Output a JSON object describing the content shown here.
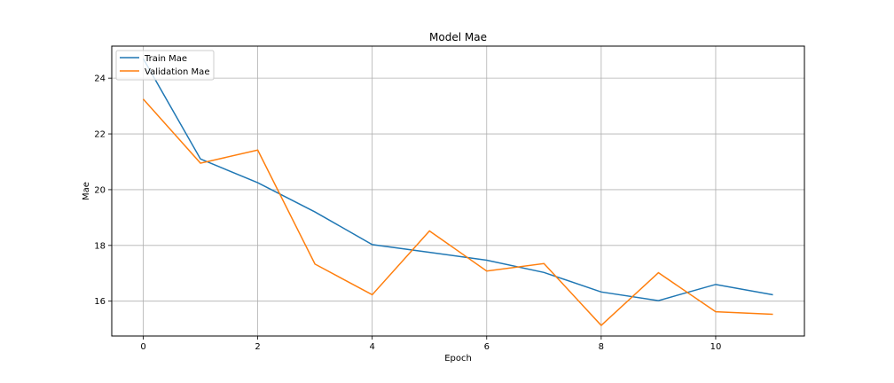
{
  "chart_data": {
    "type": "line",
    "title": "Model Mae",
    "xlabel": "Epoch",
    "ylabel": "Mae",
    "x": [
      0,
      1,
      2,
      3,
      4,
      5,
      6,
      7,
      8,
      9,
      10,
      11
    ],
    "xlim": [
      -0.55,
      11.55
    ],
    "ylim": [
      14.75,
      25.15
    ],
    "xticks": [
      0,
      2,
      4,
      6,
      8,
      10
    ],
    "yticks": [
      16,
      18,
      20,
      22,
      24
    ],
    "grid": true,
    "legend_position": "top-left",
    "series": [
      {
        "name": "Train Mae",
        "color": "#1f77b4",
        "values": [
          24.7,
          21.1,
          20.25,
          19.2,
          18.03,
          17.75,
          17.47,
          17.03,
          16.33,
          16.02,
          16.6,
          16.23
        ]
      },
      {
        "name": "Validation Mae",
        "color": "#ff7f0e",
        "values": [
          23.25,
          20.95,
          21.42,
          17.33,
          16.23,
          18.52,
          17.08,
          17.35,
          15.13,
          17.02,
          15.62,
          15.53
        ]
      }
    ]
  }
}
